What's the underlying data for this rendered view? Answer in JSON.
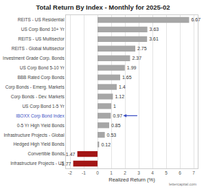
{
  "chart_data": {
    "type": "bar",
    "orientation": "horizontal",
    "title": "Total Return By Index - Monthly for 2025-02",
    "x_label": "Realized Return (%)",
    "source": "lettercapital.com",
    "categories": [
      "REITS - US Residential",
      "US Corp Bond 10+ Yr",
      "REITS - US Multisector",
      "REITS - Global Multisector",
      "Investment Grade Corp. Bonds",
      "US Corp Bond 5-10 Yr",
      "BBB Rated Corp Bonds",
      "Corp Bonds - Emerg. Markets",
      "Corp Bonds - Dev. Markets",
      "US Corp Bond 1-5 Yr",
      "IBOXX Corp Bond Index",
      "0-5 Yr High Yield Bonds",
      "Infrastructure Projects - Global",
      "Hedged High Yield Bonds",
      "Convertible Bonds",
      "Infrastructure Projects - US"
    ],
    "values": [
      6.67,
      3.63,
      3.61,
      2.75,
      2.37,
      1.99,
      1.65,
      1.4,
      1.12,
      1,
      0.97,
      0.85,
      0.53,
      0.12,
      -1.47,
      -1.77
    ],
    "colors": [
      "#a6a6a6",
      "#a6a6a6",
      "#a6a6a6",
      "#a6a6a6",
      "#a6a6a6",
      "#a6a6a6",
      "#a6a6a6",
      "#a6a6a6",
      "#a6a6a6",
      "#a6a6a6",
      "#a6a6a6",
      "#a6a6a6",
      "#a6a6a6",
      "#a6a6a6",
      "#a31515",
      "#a31515"
    ],
    "xlim": [
      -2.3,
      7.3
    ],
    "xticks": [
      -2,
      -1,
      0,
      1,
      2,
      3,
      4,
      5,
      6,
      7
    ],
    "grid": true,
    "data_labels": true
  }
}
